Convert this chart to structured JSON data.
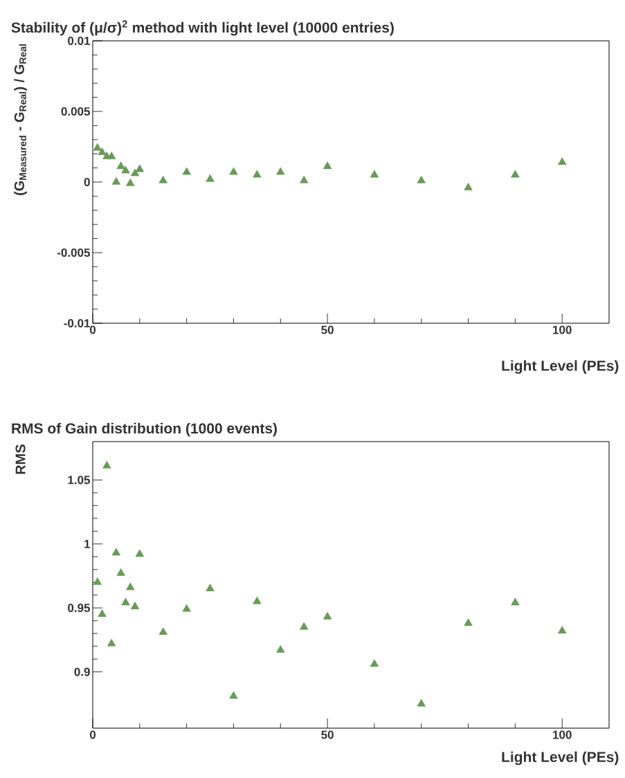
{
  "chart_data": [
    {
      "type": "scatter",
      "title": "Stability of (μ/σ)$^{2}$ method with light level (10000 entries)",
      "xlabel": "Light Level (PEs)",
      "ylabel": "(G$_{Measured}$ - G$_{Real}$) / G$_{Real}$",
      "x": [
        1,
        2,
        3,
        4,
        5,
        6,
        7,
        8,
        9,
        10,
        15,
        20,
        25,
        30,
        35,
        40,
        45,
        50,
        60,
        70,
        80,
        90,
        100
      ],
      "values": [
        0.0024,
        0.0021,
        0.0018,
        0.0018,
        0.0,
        0.0011,
        0.0008,
        -0.0001,
        0.0006,
        0.0009,
        0.0001,
        0.0007,
        0.0002,
        0.0007,
        0.0005,
        0.0007,
        0.0001,
        0.0011,
        0.0005,
        0.0001,
        -0.0004,
        0.0005,
        0.0014
      ],
      "color": "#6a9a58",
      "marker": "triangle",
      "grid": false,
      "xlim": [
        0,
        110
      ],
      "ylim": [
        -0.01,
        0.01
      ],
      "xticks": [
        0,
        50,
        100
      ],
      "yticks": [
        -0.01,
        -0.005,
        0,
        0.005,
        0.01
      ]
    },
    {
      "type": "scatter",
      "title": "RMS of Gain distribution (1000 events)",
      "xlabel": "Light Level (PEs)",
      "ylabel": "RMS",
      "x": [
        1,
        2,
        3,
        4,
        5,
        6,
        7,
        8,
        9,
        10,
        15,
        20,
        25,
        30,
        35,
        40,
        45,
        50,
        60,
        70,
        80,
        90,
        100
      ],
      "values": [
        0.97,
        0.945,
        1.061,
        0.922,
        0.993,
        0.977,
        0.954,
        0.966,
        0.951,
        0.992,
        0.931,
        0.949,
        0.965,
        0.881,
        0.955,
        0.917,
        0.935,
        0.943,
        0.906,
        0.875,
        0.938,
        0.954,
        0.932
      ],
      "color": "#6a9a58",
      "marker": "triangle",
      "grid": false,
      "xlim": [
        0,
        110
      ],
      "ylim": [
        0.856,
        1.08
      ],
      "xticks": [
        0,
        50,
        100
      ],
      "yticks": [
        0.9,
        0.95,
        1,
        1.05
      ]
    }
  ]
}
